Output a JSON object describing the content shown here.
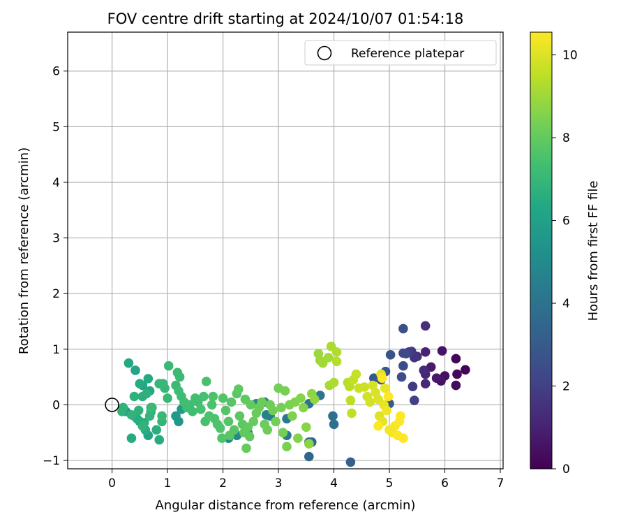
{
  "chart_data": {
    "type": "scatter",
    "title": "FOV centre drift starting at 2024/10/07 01:54:18",
    "xlabel": "Angular distance from reference (arcmin)",
    "ylabel": "Rotation from reference (arcmin)",
    "xlim": [
      -0.8,
      7.05
    ],
    "ylim": [
      -1.15,
      6.7
    ],
    "xticks": [
      0,
      1,
      2,
      3,
      4,
      5,
      6,
      7
    ],
    "yticks": [
      -1,
      0,
      1,
      2,
      3,
      4,
      5,
      6
    ],
    "grid": true,
    "legend": {
      "location": "upper right",
      "entries": [
        "Reference platepar"
      ]
    },
    "reference_point": {
      "x": 0,
      "y": 0,
      "label": "Reference platepar"
    },
    "colorbar": {
      "label": "Hours from first FF file",
      "colormap": "viridis",
      "range": [
        0,
        10.55
      ],
      "ticks": [
        0,
        2,
        4,
        6,
        8,
        10
      ]
    },
    "points": [
      [
        6.37,
        0.63,
        0.05
      ],
      [
        6.2,
        0.83,
        0.1
      ],
      [
        6.22,
        0.55,
        0.2
      ],
      [
        6.2,
        0.35,
        0.3
      ],
      [
        6.0,
        0.52,
        0.4
      ],
      [
        5.93,
        0.43,
        0.5
      ],
      [
        5.95,
        0.97,
        0.6
      ],
      [
        5.85,
        0.48,
        0.7
      ],
      [
        5.75,
        0.68,
        0.8
      ],
      [
        5.65,
        0.95,
        1.0
      ],
      [
        5.65,
        0.55,
        1.1
      ],
      [
        5.65,
        0.38,
        1.2
      ],
      [
        5.62,
        0.62,
        1.3
      ],
      [
        5.65,
        1.42,
        1.4
      ],
      [
        5.5,
        0.87,
        1.5
      ],
      [
        5.45,
        0.85,
        1.6
      ],
      [
        5.4,
        0.96,
        1.7
      ],
      [
        5.42,
        0.33,
        1.8
      ],
      [
        5.35,
        0.95,
        1.9
      ],
      [
        5.45,
        0.08,
        2.0
      ],
      [
        5.3,
        0.92,
        2.2
      ],
      [
        5.25,
        0.93,
        2.3
      ],
      [
        5.25,
        0.7,
        2.4
      ],
      [
        5.22,
        0.5,
        2.5
      ],
      [
        5.25,
        1.37,
        2.6
      ],
      [
        5.02,
        0.9,
        2.7
      ],
      [
        4.93,
        0.6,
        2.8
      ],
      [
        4.72,
        0.48,
        2.9
      ],
      [
        5.0,
        0.02,
        3.0
      ],
      [
        4.85,
        0.45,
        3.1
      ],
      [
        4.3,
        -1.03,
        3.3
      ],
      [
        3.55,
        -0.93,
        3.5
      ],
      [
        3.6,
        -0.67,
        3.6
      ],
      [
        3.55,
        -0.67,
        3.7
      ],
      [
        4.0,
        -0.35,
        3.8
      ],
      [
        3.98,
        -0.2,
        3.9
      ],
      [
        3.55,
        0.02,
        4.0
      ],
      [
        3.75,
        0.17,
        4.1
      ],
      [
        3.15,
        -0.25,
        4.2
      ],
      [
        3.15,
        -0.55,
        4.3
      ],
      [
        2.85,
        -0.2,
        4.4
      ],
      [
        2.78,
        -0.18,
        4.5
      ],
      [
        2.75,
        0.05,
        4.6
      ],
      [
        2.6,
        0.02,
        4.7
      ],
      [
        2.45,
        -0.5,
        4.8
      ],
      [
        2.25,
        -0.55,
        4.9
      ],
      [
        2.1,
        -0.6,
        5.0
      ],
      [
        1.2,
        -0.3,
        5.5
      ],
      [
        1.15,
        -0.2,
        5.6
      ],
      [
        1.25,
        -0.08,
        5.7
      ],
      [
        0.25,
        -0.12,
        5.8
      ],
      [
        0.4,
        -0.2,
        5.9
      ],
      [
        0.5,
        -0.3,
        6.0
      ],
      [
        0.65,
        -0.55,
        6.1
      ],
      [
        0.55,
        0.35,
        6.2
      ],
      [
        0.42,
        0.62,
        6.25
      ],
      [
        0.68,
        0.25,
        6.3
      ],
      [
        0.3,
        0.75,
        6.35
      ],
      [
        0.65,
        0.47,
        6.4
      ],
      [
        0.5,
        0.38,
        6.45
      ],
      [
        0.35,
        -0.6,
        6.5
      ],
      [
        0.85,
        -0.63,
        6.5
      ],
      [
        0.6,
        -0.45,
        6.55
      ],
      [
        0.45,
        -0.25,
        6.55
      ],
      [
        0.58,
        -0.32,
        6.6
      ],
      [
        0.7,
        -0.13,
        6.6
      ],
      [
        0.8,
        -0.45,
        6.65
      ],
      [
        0.55,
        0.15,
        6.65
      ],
      [
        0.62,
        0.2,
        6.7
      ],
      [
        0.72,
        -0.05,
        6.7
      ],
      [
        0.48,
        -0.1,
        6.75
      ],
      [
        0.4,
        0.15,
        6.75
      ],
      [
        0.2,
        -0.05,
        6.8
      ],
      [
        0.18,
        -0.12,
        6.8
      ],
      [
        0.35,
        -0.18,
        6.85
      ],
      [
        0.55,
        -0.38,
        6.85
      ],
      [
        0.68,
        -0.2,
        6.9
      ],
      [
        0.9,
        -0.3,
        6.9
      ],
      [
        0.95,
        0.3,
        6.95
      ],
      [
        0.85,
        0.38,
        6.95
      ],
      [
        0.92,
        0.38,
        7.0
      ],
      [
        1.0,
        0.12,
        7.0
      ],
      [
        1.02,
        0.7,
        7.05
      ],
      [
        0.9,
        -0.2,
        7.05
      ],
      [
        0.7,
        -0.05,
        7.1
      ],
      [
        1.15,
        0.35,
        7.1
      ],
      [
        1.18,
        0.58,
        7.15
      ],
      [
        1.22,
        0.5,
        7.15
      ],
      [
        1.2,
        0.25,
        7.2
      ],
      [
        1.25,
        0.15,
        7.2
      ],
      [
        1.3,
        0.05,
        7.25
      ],
      [
        1.35,
        -0.05,
        7.25
      ],
      [
        1.4,
        0.0,
        7.3
      ],
      [
        1.45,
        -0.12,
        7.3
      ],
      [
        1.5,
        0.12,
        7.35
      ],
      [
        1.55,
        0.05,
        7.35
      ],
      [
        1.6,
        -0.08,
        7.4
      ],
      [
        1.65,
        0.15,
        7.4
      ],
      [
        1.7,
        0.42,
        7.45
      ],
      [
        1.68,
        -0.3,
        7.45
      ],
      [
        1.75,
        -0.2,
        7.5
      ],
      [
        1.8,
        0.0,
        7.5
      ],
      [
        1.85,
        -0.25,
        7.55
      ],
      [
        1.82,
        0.15,
        7.55
      ],
      [
        1.9,
        -0.35,
        7.6
      ],
      [
        1.95,
        -0.42,
        7.6
      ],
      [
        2.0,
        0.12,
        7.65
      ],
      [
        1.98,
        -0.6,
        7.65
      ],
      [
        2.05,
        -0.1,
        7.7
      ],
      [
        2.1,
        -0.3,
        7.7
      ],
      [
        2.15,
        0.05,
        7.75
      ],
      [
        2.2,
        -0.45,
        7.75
      ],
      [
        2.12,
        -0.55,
        7.8
      ],
      [
        2.25,
        0.2,
        7.8
      ],
      [
        2.3,
        -0.2,
        7.85
      ],
      [
        2.35,
        -0.35,
        7.85
      ],
      [
        2.28,
        0.28,
        7.9
      ],
      [
        2.4,
        0.1,
        7.9
      ],
      [
        2.45,
        -0.4,
        7.95
      ],
      [
        2.38,
        -0.5,
        7.95
      ],
      [
        2.5,
        0.0,
        8.0
      ],
      [
        2.48,
        -0.57,
        8.0
      ],
      [
        2.42,
        -0.78,
        8.05
      ],
      [
        2.55,
        -0.3,
        8.05
      ],
      [
        2.6,
        -0.15,
        8.1
      ],
      [
        2.65,
        -0.05,
        8.1
      ],
      [
        2.7,
        0.05,
        8.15
      ],
      [
        2.75,
        -0.35,
        8.15
      ],
      [
        2.8,
        -0.45,
        8.2
      ],
      [
        2.85,
        0.0,
        8.2
      ],
      [
        2.9,
        -0.1,
        8.25
      ],
      [
        2.95,
        -0.3,
        8.3
      ],
      [
        3.0,
        0.3,
        8.3
      ],
      [
        3.05,
        -0.05,
        8.35
      ],
      [
        3.08,
        -0.5,
        8.35
      ],
      [
        3.12,
        0.25,
        8.4
      ],
      [
        3.15,
        -0.75,
        8.4
      ],
      [
        3.2,
        0.0,
        8.45
      ],
      [
        3.25,
        -0.2,
        8.5
      ],
      [
        3.3,
        0.05,
        8.5
      ],
      [
        3.35,
        -0.6,
        8.55
      ],
      [
        3.4,
        0.12,
        8.6
      ],
      [
        3.45,
        -0.05,
        8.6
      ],
      [
        3.5,
        -0.4,
        8.65
      ],
      [
        3.55,
        -0.7,
        8.7
      ],
      [
        3.6,
        0.2,
        8.75
      ],
      [
        3.65,
        0.1,
        8.8
      ],
      [
        3.72,
        0.92,
        8.95
      ],
      [
        3.75,
        0.8,
        9.0
      ],
      [
        3.8,
        0.75,
        9.05
      ],
      [
        3.9,
        0.85,
        9.1
      ],
      [
        3.92,
        0.35,
        9.15
      ],
      [
        3.95,
        1.05,
        9.2
      ],
      [
        4.0,
        0.4,
        9.25
      ],
      [
        4.05,
        0.95,
        9.3
      ],
      [
        4.05,
        0.78,
        9.35
      ],
      [
        4.25,
        0.4,
        9.4
      ],
      [
        4.28,
        0.33,
        9.45
      ],
      [
        4.3,
        0.08,
        9.5
      ],
      [
        4.32,
        -0.15,
        9.55
      ],
      [
        4.35,
        0.45,
        9.6
      ],
      [
        4.4,
        0.55,
        9.65
      ],
      [
        4.45,
        0.3,
        9.7
      ],
      [
        4.55,
        0.32,
        9.75
      ],
      [
        4.6,
        0.15,
        9.8
      ],
      [
        4.65,
        0.05,
        9.85
      ],
      [
        4.7,
        0.35,
        9.9
      ],
      [
        4.75,
        0.22,
        9.95
      ],
      [
        4.8,
        0.1,
        10.0
      ],
      [
        4.82,
        -0.2,
        10.05
      ],
      [
        4.85,
        0.55,
        10.1
      ],
      [
        4.88,
        -0.3,
        10.15
      ],
      [
        4.9,
        0.0,
        10.2
      ],
      [
        4.92,
        0.3,
        10.25
      ],
      [
        4.95,
        -0.1,
        10.3
      ],
      [
        5.0,
        -0.45,
        10.35
      ],
      [
        5.05,
        -0.5,
        10.4
      ],
      [
        5.1,
        -0.38,
        10.45
      ],
      [
        5.15,
        -0.55,
        10.5
      ],
      [
        5.2,
        -0.2,
        10.5
      ],
      [
        5.25,
        -0.6,
        10.55
      ],
      [
        5.18,
        -0.3,
        10.55
      ],
      [
        4.98,
        0.15,
        10.55
      ],
      [
        4.87,
        0.48,
        10.55
      ],
      [
        4.8,
        -0.38,
        10.55
      ]
    ]
  }
}
